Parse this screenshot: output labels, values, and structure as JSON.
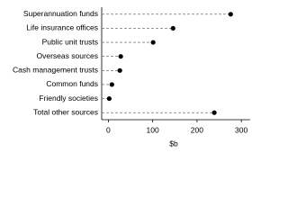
{
  "chart_data": {
    "type": "dot",
    "categories": [
      "Superannuation funds",
      "Life insurance offices",
      "Public unit trusts",
      "Overseas sources",
      "Cash management trusts",
      "Common funds",
      "Friendly societies",
      "Total other sources"
    ],
    "values": [
      276,
      146,
      101,
      28,
      26,
      8,
      2,
      239
    ],
    "color": "#000000",
    "xlim": [
      -15,
      320
    ],
    "xticks": [
      0,
      100,
      200,
      300
    ],
    "x_label": "$b",
    "grid": false
  }
}
